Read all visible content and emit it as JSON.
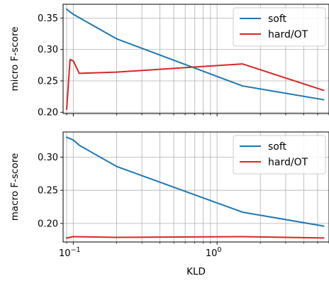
{
  "chart_data": [
    {
      "type": "line",
      "xlabel": "",
      "ylabel": "micro F-score",
      "xscale": "log",
      "xlim": [
        0.085,
        6.0
      ],
      "ylim": [
        0.198,
        0.372
      ],
      "yticks": [
        0.2,
        0.25,
        0.3,
        0.35
      ],
      "ytick_labels": [
        "0.20",
        "0.25",
        "0.30",
        "0.35"
      ],
      "grid": true,
      "legend_position": "top-right",
      "series": [
        {
          "name": "soft",
          "color": "#1f77b4",
          "x": [
            0.09,
            0.1,
            0.2,
            1.5,
            5.5
          ],
          "y": [
            0.364,
            0.356,
            0.317,
            0.242,
            0.22
          ]
        },
        {
          "name": "hard/OT",
          "color": "#d62728",
          "x": [
            0.09,
            0.095,
            0.1,
            0.11,
            0.2,
            1.5,
            5.5
          ],
          "y": [
            0.205,
            0.284,
            0.282,
            0.262,
            0.264,
            0.277,
            0.235
          ]
        }
      ]
    },
    {
      "type": "line",
      "xlabel": "KLD",
      "ylabel": "macro F-score",
      "xscale": "log",
      "xlim": [
        0.085,
        6.0
      ],
      "ylim": [
        0.172,
        0.338
      ],
      "yticks": [
        0.2,
        0.25,
        0.3
      ],
      "ytick_labels": [
        "0.20",
        "0.25",
        "0.30"
      ],
      "xticks": [
        0.1,
        1
      ],
      "xtick_labels": [
        "10",
        "10"
      ],
      "xtick_exponents": [
        "−1",
        "0"
      ],
      "grid": true,
      "legend_position": "top-right",
      "series": [
        {
          "name": "soft",
          "color": "#1f77b4",
          "x": [
            0.09,
            0.1,
            0.11,
            0.2,
            1.5,
            5.5
          ],
          "y": [
            0.33,
            0.326,
            0.318,
            0.286,
            0.217,
            0.196
          ]
        },
        {
          "name": "hard/OT",
          "color": "#d62728",
          "x": [
            0.09,
            0.1,
            0.2,
            1.5,
            5.5
          ],
          "y": [
            0.178,
            0.18,
            0.179,
            0.18,
            0.178
          ]
        }
      ]
    }
  ]
}
